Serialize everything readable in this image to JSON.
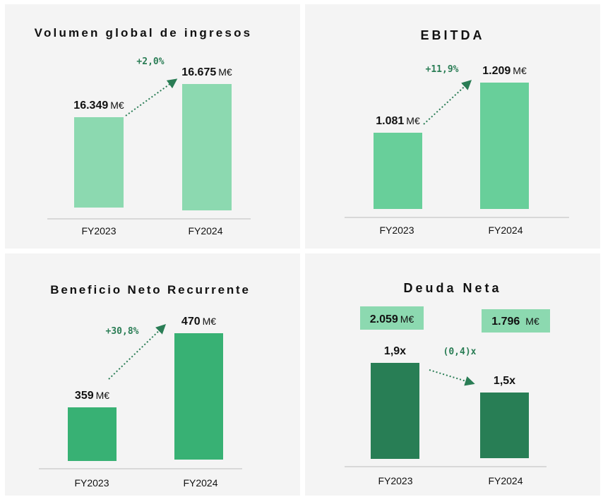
{
  "colors": {
    "panel_bg": "#f4f4f4",
    "axis": "#bdbdbd",
    "arrow": "#2a7d55",
    "growth_text": "#2a7d55",
    "volumen_bar": "#8cd9b0",
    "ebitda_bar": "#68cf9a",
    "beneficio_bar": "#38b174",
    "deuda_bar": "#287e55",
    "deuda_box": "#8cd9b0"
  },
  "chart_data": [
    {
      "type": "bar",
      "title": "Volumen global de ingresos",
      "categories": [
        "FY2023",
        "FY2024"
      ],
      "values": [
        16349,
        16675
      ],
      "value_labels": [
        "16.349",
        "16.675"
      ],
      "unit": "M€",
      "growth": "+2,0%"
    },
    {
      "type": "bar",
      "title": "EBITDA",
      "categories": [
        "FY2023",
        "FY2024"
      ],
      "values": [
        1081,
        1209
      ],
      "value_labels": [
        "1.081",
        "1.209"
      ],
      "unit": "M€",
      "growth": "+11,9%"
    },
    {
      "type": "bar",
      "title": "Beneficio Neto Recurrente",
      "categories": [
        "FY2023",
        "FY2024"
      ],
      "values": [
        359,
        470
      ],
      "value_labels": [
        "359",
        "470"
      ],
      "unit": "M€",
      "growth": "+30,8%"
    },
    {
      "type": "bar",
      "title": "Deuda Neta",
      "categories": [
        "FY2023",
        "FY2024"
      ],
      "values": [
        1.9,
        1.5
      ],
      "value_labels": [
        "1,9x",
        "1,5x"
      ],
      "unit": "",
      "growth": "(0,4)x",
      "boxes": [
        {
          "value": "2.059",
          "unit": "M€"
        },
        {
          "value": "1.796",
          "unit": "M€"
        }
      ]
    }
  ]
}
